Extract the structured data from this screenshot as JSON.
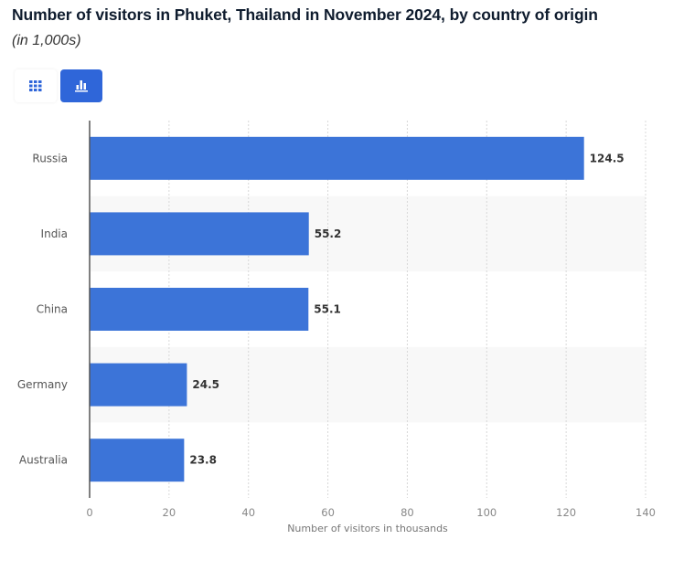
{
  "header": {
    "title": "Number of visitors in Phuket, Thailand in November 2024, by country of origin",
    "subtitle": "(in 1,000s)"
  },
  "view_toggle": {
    "table_icon": "grid-icon",
    "chart_icon": "bar-chart-icon",
    "active": "chart"
  },
  "colors": {
    "bar": "#3c74d8",
    "accent": "#2f66d9",
    "band": "#f8f8f8"
  },
  "chart_data": {
    "type": "bar",
    "orientation": "horizontal",
    "title": "Number of visitors in Phuket, Thailand in November 2024, by country of origin",
    "subtitle": "(in 1,000s)",
    "categories": [
      "Russia",
      "India",
      "China",
      "Germany",
      "Australia"
    ],
    "values": [
      124.5,
      55.2,
      55.1,
      24.5,
      23.8
    ],
    "value_labels": [
      "124.5",
      "55.2",
      "55.1",
      "24.5",
      "23.8"
    ],
    "xlabel": "Number of visitors in thousands",
    "ylabel": "",
    "xlim": [
      0,
      140
    ],
    "xticks": [
      0,
      20,
      40,
      60,
      80,
      100,
      120,
      140
    ],
    "xtick_labels": [
      "0",
      "20",
      "40",
      "60",
      "80",
      "100",
      "120",
      "140"
    ],
    "grid": true,
    "legend": "none"
  }
}
